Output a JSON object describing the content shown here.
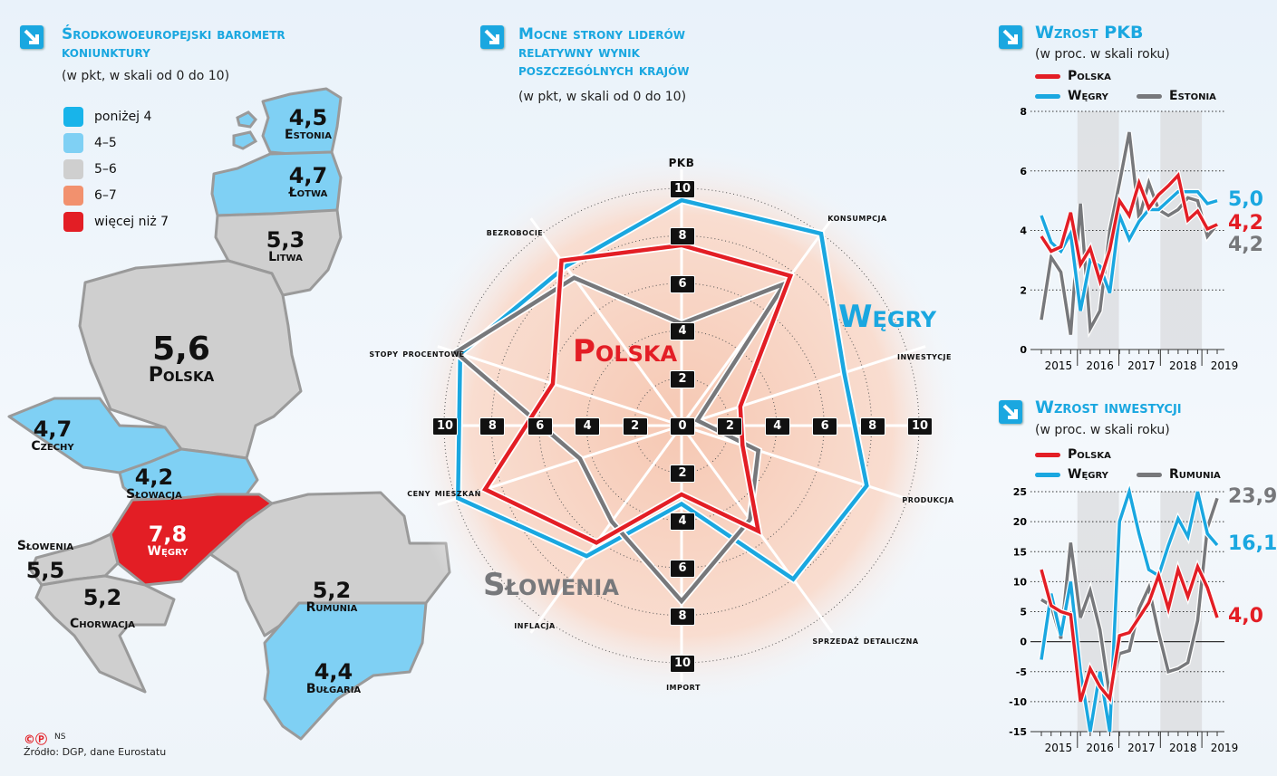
{
  "map": {
    "title_line1": "Środkowoeuropejski barometr",
    "title_line2": "koniunktury",
    "subtitle": "(w pkt, w skali od 0 do 10)",
    "legend": [
      {
        "label": "poniżej 4",
        "color": "#18b4ea"
      },
      {
        "label": "4–5",
        "color": "#7fd0f4"
      },
      {
        "label": "5–6",
        "color": "#cfcfcf"
      },
      {
        "label": "6–7",
        "color": "#f2916e"
      },
      {
        "label": "więcej niż 7",
        "color": "#e31e25"
      }
    ],
    "countries": [
      {
        "name": "Estonia",
        "value": "4,5",
        "color": "#7fd0f4"
      },
      {
        "name": "Łotwa",
        "value": "4,7",
        "color": "#7fd0f4"
      },
      {
        "name": "Litwa",
        "value": "5,3",
        "color": "#cfcfcf"
      },
      {
        "name": "Polska",
        "value": "5,6",
        "color": "#cfcfcf"
      },
      {
        "name": "Czechy",
        "value": "4,7",
        "color": "#7fd0f4"
      },
      {
        "name": "Słowacja",
        "value": "4,2",
        "color": "#7fd0f4"
      },
      {
        "name": "Węgry",
        "value": "7,8",
        "color": "#e31e25"
      },
      {
        "name": "Słowenia",
        "value": "5,5",
        "color": "#cfcfcf"
      },
      {
        "name": "Chorwacja",
        "value": "5,2",
        "color": "#cfcfcf"
      },
      {
        "name": "Rumunia",
        "value": "5,2",
        "color": "#cfcfcf"
      },
      {
        "name": "Bułgaria",
        "value": "4,4",
        "color": "#7fd0f4"
      }
    ],
    "footer_credit": "NS",
    "source": "Źródło: DGP, dane Eurostatu"
  },
  "chart_data": [
    {
      "type": "radar",
      "title_line1": "Mocne strony liderów",
      "title_line2": "relatywny wynik",
      "title_line3": "poszczególnych krajów",
      "subtitle": "(w pkt, w skali od 0 do 10)",
      "range": [
        0,
        10
      ],
      "ticks_vertical": [
        "10",
        "8",
        "6",
        "4",
        "2",
        "0",
        "2",
        "4",
        "6",
        "8",
        "10"
      ],
      "ticks_horizontal": [
        "10",
        "8",
        "6",
        "4",
        "2",
        "0",
        "2",
        "4",
        "6",
        "8",
        "10"
      ],
      "axes": [
        "PKB",
        "konsumpcja",
        "inwestycje",
        "produkcja",
        "sprzedaż detaliczna",
        "import",
        "inflacja",
        "ceny mieszkań",
        "stopy procentowe",
        "bezrobocie"
      ],
      "series": [
        {
          "name": "Węgry",
          "color": "#1aa7e0",
          "values": [
            9.5,
            10,
            7.2,
            8.2,
            8.0,
            3.3,
            6.8,
            9.9,
            9.8,
            8.3
          ]
        },
        {
          "name": "Słowenia",
          "color": "#77787b",
          "values": [
            4.3,
            7.4,
            0.7,
            3.4,
            4.9,
            7.4,
            5.0,
            4.5,
            10,
            7.7
          ]
        },
        {
          "name": "Polska",
          "color": "#e31e25",
          "values": [
            7.6,
            7.8,
            2.6,
            2.7,
            5.5,
            2.9,
            6.1,
            8.7,
            5.7,
            8.6
          ]
        }
      ]
    },
    {
      "type": "line",
      "title": "Wzrost PKB",
      "subtitle": "(w proc. w skali roku)",
      "x_labels": [
        "2015",
        "2016",
        "2017",
        "2018",
        "2019"
      ],
      "y_ticks": [
        "8",
        "6",
        "4",
        "2",
        "0"
      ],
      "ylim": [
        0,
        8
      ],
      "grid": true,
      "series": [
        {
          "name": "Polska",
          "color": "#e31e25",
          "end_label": "4,2",
          "values": [
            3.8,
            3.3,
            3.45,
            4.6,
            2.85,
            3.4,
            2.3,
            3.35,
            5.0,
            4.5,
            5.6,
            4.75,
            5.2,
            5.5,
            5.85,
            4.35,
            4.65,
            4.05,
            4.2
          ]
        },
        {
          "name": "Węgry",
          "color": "#1aa7e0",
          "end_label": "5,0",
          "values": [
            4.5,
            3.6,
            3.3,
            3.9,
            1.3,
            3.0,
            2.8,
            1.9,
            4.5,
            3.7,
            4.3,
            4.7,
            4.7,
            5.0,
            5.3,
            5.3,
            5.3,
            4.9,
            5.0
          ]
        },
        {
          "name": "Estonia",
          "color": "#77787b",
          "end_label": "4,2",
          "values": [
            1.0,
            3.1,
            2.6,
            0.5,
            4.9,
            0.7,
            1.3,
            4.0,
            5.6,
            7.3,
            4.4,
            5.6,
            4.7,
            4.5,
            4.7,
            5.1,
            5.0,
            3.8,
            4.2
          ]
        }
      ]
    },
    {
      "type": "line",
      "title": "Wzrost inwestycji",
      "subtitle": "(w proc. w skali roku)",
      "x_labels": [
        "2015",
        "2016",
        "2017",
        "2018",
        "2019"
      ],
      "y_ticks": [
        "25",
        "20",
        "15",
        "10",
        "5",
        "0",
        "-5",
        "-10",
        "-15"
      ],
      "ylim": [
        -15,
        25
      ],
      "grid": true,
      "series": [
        {
          "name": "Polska",
          "color": "#e31e25",
          "end_label": "4,0",
          "values": [
            12,
            6,
            5,
            4.5,
            -10,
            -4.5,
            -7.5,
            -9.5,
            1,
            1.5,
            4,
            6.5,
            11,
            5.5,
            12,
            7.5,
            12.5,
            9,
            4.0
          ]
        },
        {
          "name": "Węgry",
          "color": "#1aa7e0",
          "end_label": "16,1",
          "values": [
            -3,
            8,
            1,
            10,
            -5,
            -15,
            -5,
            -15,
            20,
            25,
            18,
            12,
            11,
            16,
            20.5,
            17.5,
            25,
            18,
            16.1
          ]
        },
        {
          "name": "Rumunia",
          "color": "#77787b",
          "end_label": "23,9",
          "values": [
            7,
            6,
            0.5,
            16.5,
            4,
            8.5,
            2,
            -9,
            -2,
            -1.5,
            5.5,
            9,
            1.5,
            -5,
            -4.5,
            -3.5,
            3.5,
            19,
            23.9
          ]
        }
      ]
    }
  ]
}
